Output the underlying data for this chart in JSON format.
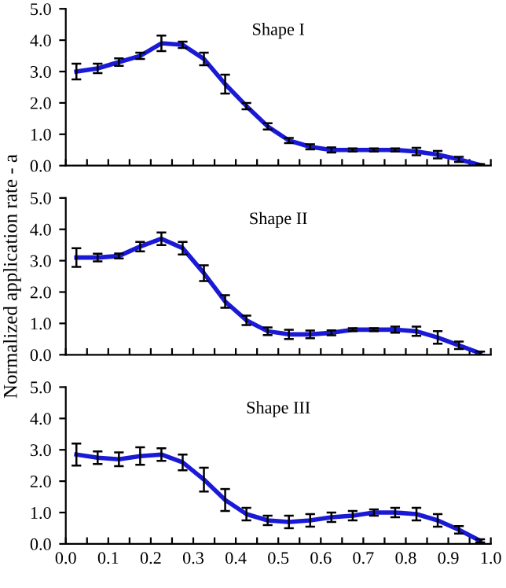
{
  "chart_data": [
    {
      "type": "line",
      "title": "Shape I",
      "x": [
        0.025,
        0.075,
        0.125,
        0.175,
        0.225,
        0.275,
        0.325,
        0.375,
        0.425,
        0.475,
        0.525,
        0.575,
        0.625,
        0.675,
        0.725,
        0.775,
        0.825,
        0.875,
        0.925,
        0.975
      ],
      "series": [
        {
          "color": "#1a1ad6",
          "values": [
            3.0,
            3.1,
            3.3,
            3.5,
            3.9,
            3.85,
            3.4,
            2.6,
            1.9,
            1.25,
            0.8,
            0.6,
            0.5,
            0.5,
            0.5,
            0.5,
            0.45,
            0.35,
            0.2,
            0.02
          ],
          "errors": [
            0.25,
            0.15,
            0.12,
            0.1,
            0.25,
            0.1,
            0.2,
            0.3,
            0.1,
            0.1,
            0.08,
            0.08,
            0.08,
            0.05,
            0.05,
            0.05,
            0.12,
            0.12,
            0.08,
            0.03
          ]
        }
      ],
      "xlim": [
        0,
        1
      ],
      "ylim": [
        0,
        5
      ],
      "yticks": [
        {
          "value": 0,
          "label": "0.0"
        },
        {
          "value": 1,
          "label": "1.0"
        },
        {
          "value": 2,
          "label": "2.0"
        },
        {
          "value": 3,
          "label": "3.0"
        },
        {
          "value": 4,
          "label": "4.0"
        },
        {
          "value": 5,
          "label": "5.0"
        }
      ],
      "xticks": [
        {
          "value": 0,
          "label": null
        },
        {
          "value": 0.05,
          "label": null
        },
        {
          "value": 0.1,
          "label": null
        },
        {
          "value": 0.15,
          "label": null
        },
        {
          "value": 0.2,
          "label": null
        },
        {
          "value": 0.25,
          "label": null
        },
        {
          "value": 0.3,
          "label": null
        },
        {
          "value": 0.35,
          "label": null
        },
        {
          "value": 0.4,
          "label": null
        },
        {
          "value": 0.45,
          "label": null
        },
        {
          "value": 0.5,
          "label": null
        },
        {
          "value": 0.55,
          "label": null
        },
        {
          "value": 0.6,
          "label": null
        },
        {
          "value": 0.65,
          "label": null
        },
        {
          "value": 0.7,
          "label": null
        },
        {
          "value": 0.75,
          "label": null
        },
        {
          "value": 0.8,
          "label": null
        },
        {
          "value": 0.85,
          "label": null
        },
        {
          "value": 0.9,
          "label": null
        },
        {
          "value": 0.95,
          "label": null
        },
        {
          "value": 1,
          "label": null
        }
      ],
      "tick_labels": "y",
      "grid": false,
      "legend": false,
      "marker": "none",
      "line_style": "solid"
    },
    {
      "type": "line",
      "title": "Shape II",
      "ylabel": "Normalized application rate - a",
      "x": [
        0.025,
        0.075,
        0.125,
        0.175,
        0.225,
        0.275,
        0.325,
        0.375,
        0.425,
        0.475,
        0.525,
        0.575,
        0.625,
        0.675,
        0.725,
        0.775,
        0.825,
        0.875,
        0.925,
        0.975
      ],
      "series": [
        {
          "color": "#1a1ad6",
          "values": [
            3.1,
            3.1,
            3.15,
            3.45,
            3.7,
            3.4,
            2.6,
            1.7,
            1.1,
            0.75,
            0.65,
            0.65,
            0.7,
            0.8,
            0.8,
            0.8,
            0.75,
            0.55,
            0.3,
            0.05
          ],
          "errors": [
            0.3,
            0.12,
            0.08,
            0.15,
            0.2,
            0.2,
            0.25,
            0.2,
            0.15,
            0.12,
            0.15,
            0.12,
            0.08,
            0.05,
            0.05,
            0.1,
            0.15,
            0.2,
            0.12,
            0.05
          ]
        }
      ],
      "xlim": [
        0,
        1
      ],
      "ylim": [
        0,
        5
      ],
      "yticks": [
        {
          "value": 0,
          "label": "0.0"
        },
        {
          "value": 1,
          "label": "1.0"
        },
        {
          "value": 2,
          "label": "2.0"
        },
        {
          "value": 3,
          "label": "3.0"
        },
        {
          "value": 4,
          "label": "4.0"
        },
        {
          "value": 5,
          "label": "5.0"
        }
      ],
      "xticks": [
        {
          "value": 0,
          "label": null
        },
        {
          "value": 0.05,
          "label": null
        },
        {
          "value": 0.1,
          "label": null
        },
        {
          "value": 0.15,
          "label": null
        },
        {
          "value": 0.2,
          "label": null
        },
        {
          "value": 0.25,
          "label": null
        },
        {
          "value": 0.3,
          "label": null
        },
        {
          "value": 0.35,
          "label": null
        },
        {
          "value": 0.4,
          "label": null
        },
        {
          "value": 0.45,
          "label": null
        },
        {
          "value": 0.5,
          "label": null
        },
        {
          "value": 0.55,
          "label": null
        },
        {
          "value": 0.6,
          "label": null
        },
        {
          "value": 0.65,
          "label": null
        },
        {
          "value": 0.7,
          "label": null
        },
        {
          "value": 0.75,
          "label": null
        },
        {
          "value": 0.8,
          "label": null
        },
        {
          "value": 0.85,
          "label": null
        },
        {
          "value": 0.9,
          "label": null
        },
        {
          "value": 0.95,
          "label": null
        },
        {
          "value": 1,
          "label": null
        }
      ],
      "tick_labels": "y",
      "grid": false,
      "legend": false,
      "marker": "none",
      "line_style": "solid"
    },
    {
      "type": "line",
      "title": "Shape III",
      "x": [
        0.025,
        0.075,
        0.125,
        0.175,
        0.225,
        0.275,
        0.325,
        0.375,
        0.425,
        0.475,
        0.525,
        0.575,
        0.625,
        0.675,
        0.725,
        0.775,
        0.825,
        0.875,
        0.925,
        0.975
      ],
      "series": [
        {
          "color": "#1a1ad6",
          "values": [
            2.85,
            2.75,
            2.7,
            2.8,
            2.85,
            2.6,
            2.05,
            1.4,
            0.95,
            0.75,
            0.7,
            0.75,
            0.85,
            0.9,
            1.0,
            1.0,
            0.95,
            0.75,
            0.45,
            0.1
          ],
          "errors": [
            0.35,
            0.2,
            0.22,
            0.28,
            0.2,
            0.25,
            0.38,
            0.35,
            0.2,
            0.15,
            0.2,
            0.2,
            0.15,
            0.15,
            0.1,
            0.15,
            0.2,
            0.2,
            0.12,
            0.05
          ]
        }
      ],
      "xlim": [
        0,
        1
      ],
      "ylim": [
        0,
        5
      ],
      "yticks": [
        {
          "value": 0,
          "label": "0.0"
        },
        {
          "value": 1,
          "label": "1.0"
        },
        {
          "value": 2,
          "label": "2.0"
        },
        {
          "value": 3,
          "label": "3.0"
        },
        {
          "value": 4,
          "label": "4.0"
        },
        {
          "value": 5,
          "label": "5.0"
        }
      ],
      "xticks": [
        {
          "value": 0,
          "label": "0.0"
        },
        {
          "value": 0.05,
          "label": null
        },
        {
          "value": 0.1,
          "label": "0.1"
        },
        {
          "value": 0.15,
          "label": null
        },
        {
          "value": 0.2,
          "label": "0.2"
        },
        {
          "value": 0.25,
          "label": null
        },
        {
          "value": 0.3,
          "label": "0.3"
        },
        {
          "value": 0.35,
          "label": null
        },
        {
          "value": 0.4,
          "label": "0.4"
        },
        {
          "value": 0.45,
          "label": null
        },
        {
          "value": 0.5,
          "label": "0.5"
        },
        {
          "value": 0.55,
          "label": null
        },
        {
          "value": 0.6,
          "label": "0.6"
        },
        {
          "value": 0.65,
          "label": null
        },
        {
          "value": 0.7,
          "label": "0.7"
        },
        {
          "value": 0.75,
          "label": null
        },
        {
          "value": 0.8,
          "label": "0.8"
        },
        {
          "value": 0.85,
          "label": null
        },
        {
          "value": 0.9,
          "label": "0.9"
        },
        {
          "value": 0.95,
          "label": null
        },
        {
          "value": 1,
          "label": "1.0"
        }
      ],
      "grid": false,
      "legend": false,
      "marker": "none",
      "line_style": "solid"
    }
  ]
}
